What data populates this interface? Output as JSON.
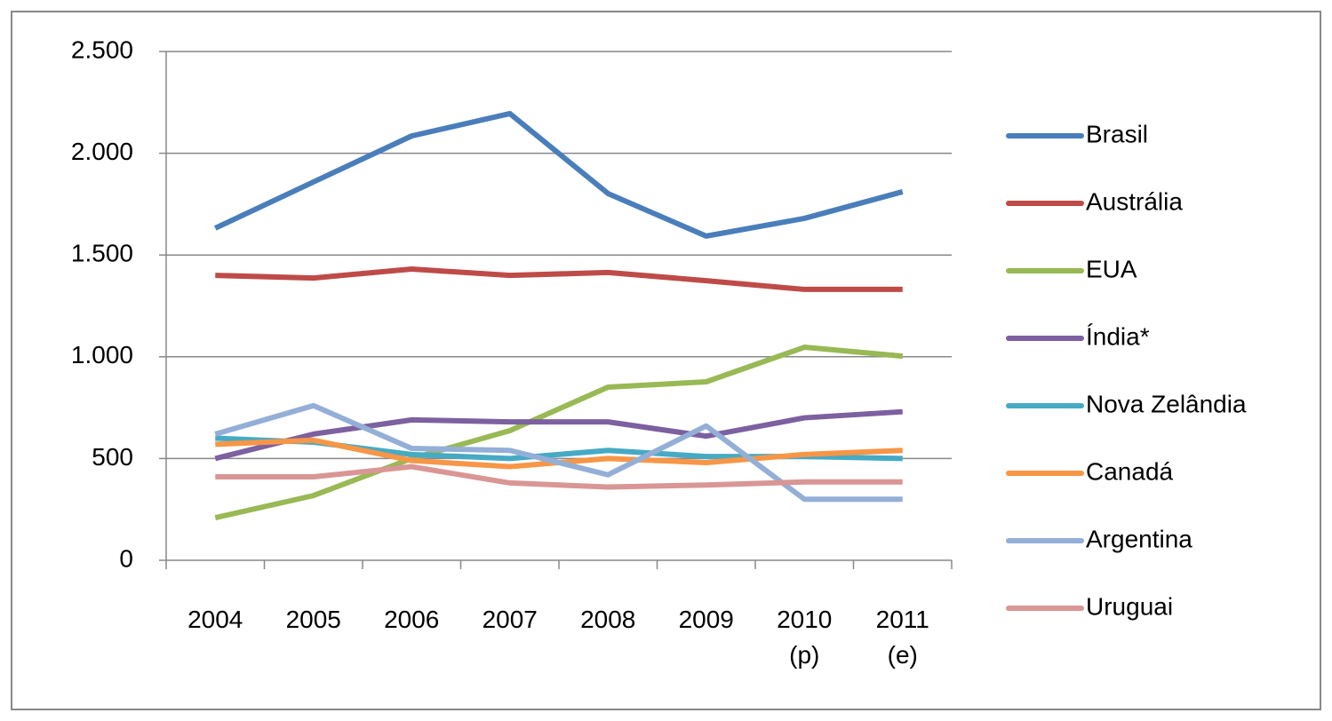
{
  "chart_data": {
    "type": "line",
    "categories": [
      "2004",
      "2005",
      "2006",
      "2007",
      "2008",
      "2009",
      "2010 (p)",
      "2011 (e)"
    ],
    "series": [
      {
        "name": "Brasil",
        "color": "#4a7ebb",
        "values": [
          1632,
          1859,
          2085,
          2195,
          1802,
          1593,
          1680,
          1811
        ]
      },
      {
        "name": "Austrália",
        "color": "#be4b48",
        "values": [
          1400,
          1387,
          1431,
          1400,
          1414,
          1374,
          1331,
          1331
        ]
      },
      {
        "name": "EUA",
        "color": "#98b954",
        "values": [
          209,
          318,
          500,
          637,
          851,
          877,
          1047,
          1003
        ]
      },
      {
        "name": "Índia*",
        "color": "#7d60a0",
        "values": [
          500,
          620,
          690,
          680,
          680,
          610,
          700,
          730
        ]
      },
      {
        "name": "Nova Zelândia",
        "color": "#46aac5",
        "values": [
          600,
          580,
          520,
          500,
          540,
          510,
          510,
          500
        ]
      },
      {
        "name": "Canadá",
        "color": "#f79646",
        "values": [
          570,
          590,
          490,
          460,
          500,
          480,
          520,
          540
        ]
      },
      {
        "name": "Argentina",
        "color": "#94afd7",
        "values": [
          620,
          760,
          550,
          540,
          420,
          660,
          300,
          300
        ]
      },
      {
        "name": "Uruguai",
        "color": "#d99694",
        "values": [
          410,
          410,
          460,
          380,
          360,
          370,
          385,
          385
        ]
      }
    ],
    "ylim": [
      0,
      2500
    ],
    "yticks": [
      0,
      500,
      {
        "value": 1000,
        "label": "1.000"
      },
      {
        "value": 1500,
        "label": "1.500"
      },
      {
        "value": 2000,
        "label": "2.000"
      },
      {
        "value": 2500,
        "label": "2.500"
      }
    ],
    "grid": true,
    "legend": "right"
  }
}
